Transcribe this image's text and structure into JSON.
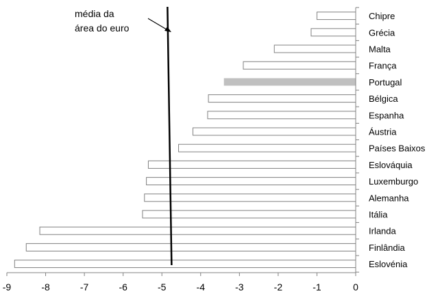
{
  "chart_data": {
    "type": "bar",
    "orientation": "horizontal",
    "categories": [
      "Chipre",
      "Grécia",
      "Malta",
      "França",
      "Portugal",
      "Bélgica",
      "Espanha",
      "Áustria",
      "Países Baixos",
      "Eslováquia",
      "Luxemburgo",
      "Alemanha",
      "Itália",
      "Irlanda",
      "Finlândia",
      "Eslovénia"
    ],
    "values": [
      -1.0,
      -1.15,
      -2.1,
      -2.9,
      -3.4,
      -3.8,
      -3.82,
      -4.2,
      -4.57,
      -5.35,
      -5.4,
      -5.45,
      -5.5,
      -8.15,
      -8.5,
      -8.8
    ],
    "highlight": "Portugal",
    "bar_color": "#ffffff",
    "bar_edge_color": "#808080",
    "highlight_color": "#c0c0c0",
    "xlim": [
      -9,
      0
    ],
    "xticks": [
      -9,
      -8,
      -7,
      -6,
      -5,
      -4,
      -3,
      -2,
      -1,
      0
    ],
    "grid": false,
    "reference_line": {
      "value": -4.75,
      "color": "#000000",
      "label_lines": [
        "média da",
        "área do euro"
      ]
    }
  }
}
